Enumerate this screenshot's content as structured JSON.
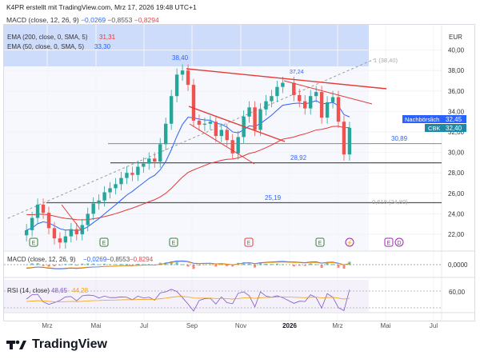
{
  "header": {
    "title": "K4PR erstellt mit TradingView.com, Mrz 17, 2026 19:48 UTC+1"
  },
  "macd_top": {
    "label": "MACD (close, 12, 26, 9)",
    "v1": "−0,0269",
    "v2": "−0,8553",
    "v3": "−0,8294"
  },
  "currency": "EUR",
  "legend": {
    "ema200_label": "EMA (200, close, 0, SMA, 5)",
    "ema200_value": "31,31",
    "ema50_label": "EMA (50, close, 0, SMA, 5)",
    "ema50_value": "33,30"
  },
  "price_badges": {
    "nachboerslich_label": "Nachbörslich",
    "nachboerslich_value": "32,45",
    "cbk_label": "CBK",
    "cbk_value": "32,40"
  },
  "annotations": {
    "high": "38,40",
    "high2": "37,24",
    "level_3089": "30,89",
    "level_2892": "28,92",
    "level_2519": "25,19",
    "fib_1": "1 (38,40)",
    "fib_0618": "0,618 (24,80)"
  },
  "macd_pane": {
    "label": "MACD (close, 12, 26, 9)",
    "v1": "−0,0269",
    "v2": "−0,8553",
    "v3": "−0,8294",
    "axis": "0,0000"
  },
  "rsi_pane": {
    "label": "RSI (14, close)",
    "v1": "48,65",
    "v2": "44,28",
    "axis": "60,00"
  },
  "event_markers": [
    "E",
    "E",
    "E",
    "E",
    "E",
    "⚡",
    "E",
    "D"
  ],
  "brand": {
    "name": "TradingView"
  },
  "colors": {
    "ema200": "#e53935",
    "ema50": "#2962ff",
    "up": "#26a69a",
    "down": "#ef5350",
    "trend": "#e53935",
    "band": "#c9d8fb"
  },
  "chart_data": {
    "type": "candlestick",
    "x_ticks": [
      "Mrz",
      "Mai",
      "Jul",
      "Sep",
      "Nov",
      "2026",
      "Mrz",
      "Mai",
      "Jul"
    ],
    "y_ticks": [
      22,
      24,
      26,
      28,
      30,
      32,
      34,
      36,
      38,
      40
    ],
    "ylim": [
      21,
      41.8
    ],
    "close_series": [
      {
        "x": "2025-02-03",
        "y": 22.4
      },
      {
        "x": "2025-02-10",
        "y": 23.6
      },
      {
        "x": "2025-02-17",
        "y": 24.9
      },
      {
        "x": "2025-02-24",
        "y": 24.1
      },
      {
        "x": "2025-03-03",
        "y": 22.6
      },
      {
        "x": "2025-03-10",
        "y": 21.6
      },
      {
        "x": "2025-03-17",
        "y": 21.2
      },
      {
        "x": "2025-03-24",
        "y": 21.8
      },
      {
        "x": "2025-03-31",
        "y": 22.5
      },
      {
        "x": "2025-04-07",
        "y": 22.0
      },
      {
        "x": "2025-04-14",
        "y": 22.9
      },
      {
        "x": "2025-04-21",
        "y": 24.0
      },
      {
        "x": "2025-04-28",
        "y": 25.0
      },
      {
        "x": "2025-05-05",
        "y": 25.3
      },
      {
        "x": "2025-05-12",
        "y": 26.1
      },
      {
        "x": "2025-05-19",
        "y": 26.5
      },
      {
        "x": "2025-05-26",
        "y": 26.9
      },
      {
        "x": "2025-06-02",
        "y": 27.5
      },
      {
        "x": "2025-06-09",
        "y": 28.0
      },
      {
        "x": "2025-06-16",
        "y": 27.8
      },
      {
        "x": "2025-06-23",
        "y": 28.6
      },
      {
        "x": "2025-06-30",
        "y": 28.9
      },
      {
        "x": "2025-07-07",
        "y": 29.4
      },
      {
        "x": "2025-07-14",
        "y": 29.1
      },
      {
        "x": "2025-07-21",
        "y": 30.8
      },
      {
        "x": "2025-07-28",
        "y": 32.8
      },
      {
        "x": "2025-08-04",
        "y": 35.5
      },
      {
        "x": "2025-08-11",
        "y": 37.6
      },
      {
        "x": "2025-08-18",
        "y": 38.0
      },
      {
        "x": "2025-08-25",
        "y": 36.6
      },
      {
        "x": "2025-09-01",
        "y": 33.1
      },
      {
        "x": "2025-09-08",
        "y": 32.7
      },
      {
        "x": "2025-09-15",
        "y": 32.8
      },
      {
        "x": "2025-09-22",
        "y": 33.0
      },
      {
        "x": "2025-09-29",
        "y": 31.6
      },
      {
        "x": "2025-10-06",
        "y": 32.2
      },
      {
        "x": "2025-10-13",
        "y": 31.2
      },
      {
        "x": "2025-10-20",
        "y": 29.9
      },
      {
        "x": "2025-10-27",
        "y": 31.5
      },
      {
        "x": "2025-11-03",
        "y": 33.5
      },
      {
        "x": "2025-11-10",
        "y": 34.4
      },
      {
        "x": "2025-11-17",
        "y": 32.2
      },
      {
        "x": "2025-11-24",
        "y": 34.2
      },
      {
        "x": "2025-12-01",
        "y": 35.0
      },
      {
        "x": "2025-12-08",
        "y": 35.5
      },
      {
        "x": "2025-12-15",
        "y": 36.4
      },
      {
        "x": "2025-12-22",
        "y": 36.8
      },
      {
        "x": "2026-01-05",
        "y": 35.6
      },
      {
        "x": "2026-01-12",
        "y": 35.0
      },
      {
        "x": "2026-01-19",
        "y": 34.3
      },
      {
        "x": "2026-01-26",
        "y": 35.5
      },
      {
        "x": "2026-02-02",
        "y": 35.9
      },
      {
        "x": "2026-02-09",
        "y": 33.4
      },
      {
        "x": "2026-02-16",
        "y": 34.9
      },
      {
        "x": "2026-02-23",
        "y": 35.4
      },
      {
        "x": "2026-03-02",
        "y": 33.0
      },
      {
        "x": "2026-03-09",
        "y": 29.8
      },
      {
        "x": "2026-03-16",
        "y": 32.4
      }
    ],
    "horizontal_levels": [
      30.89,
      28.92,
      25.19
    ]
  }
}
